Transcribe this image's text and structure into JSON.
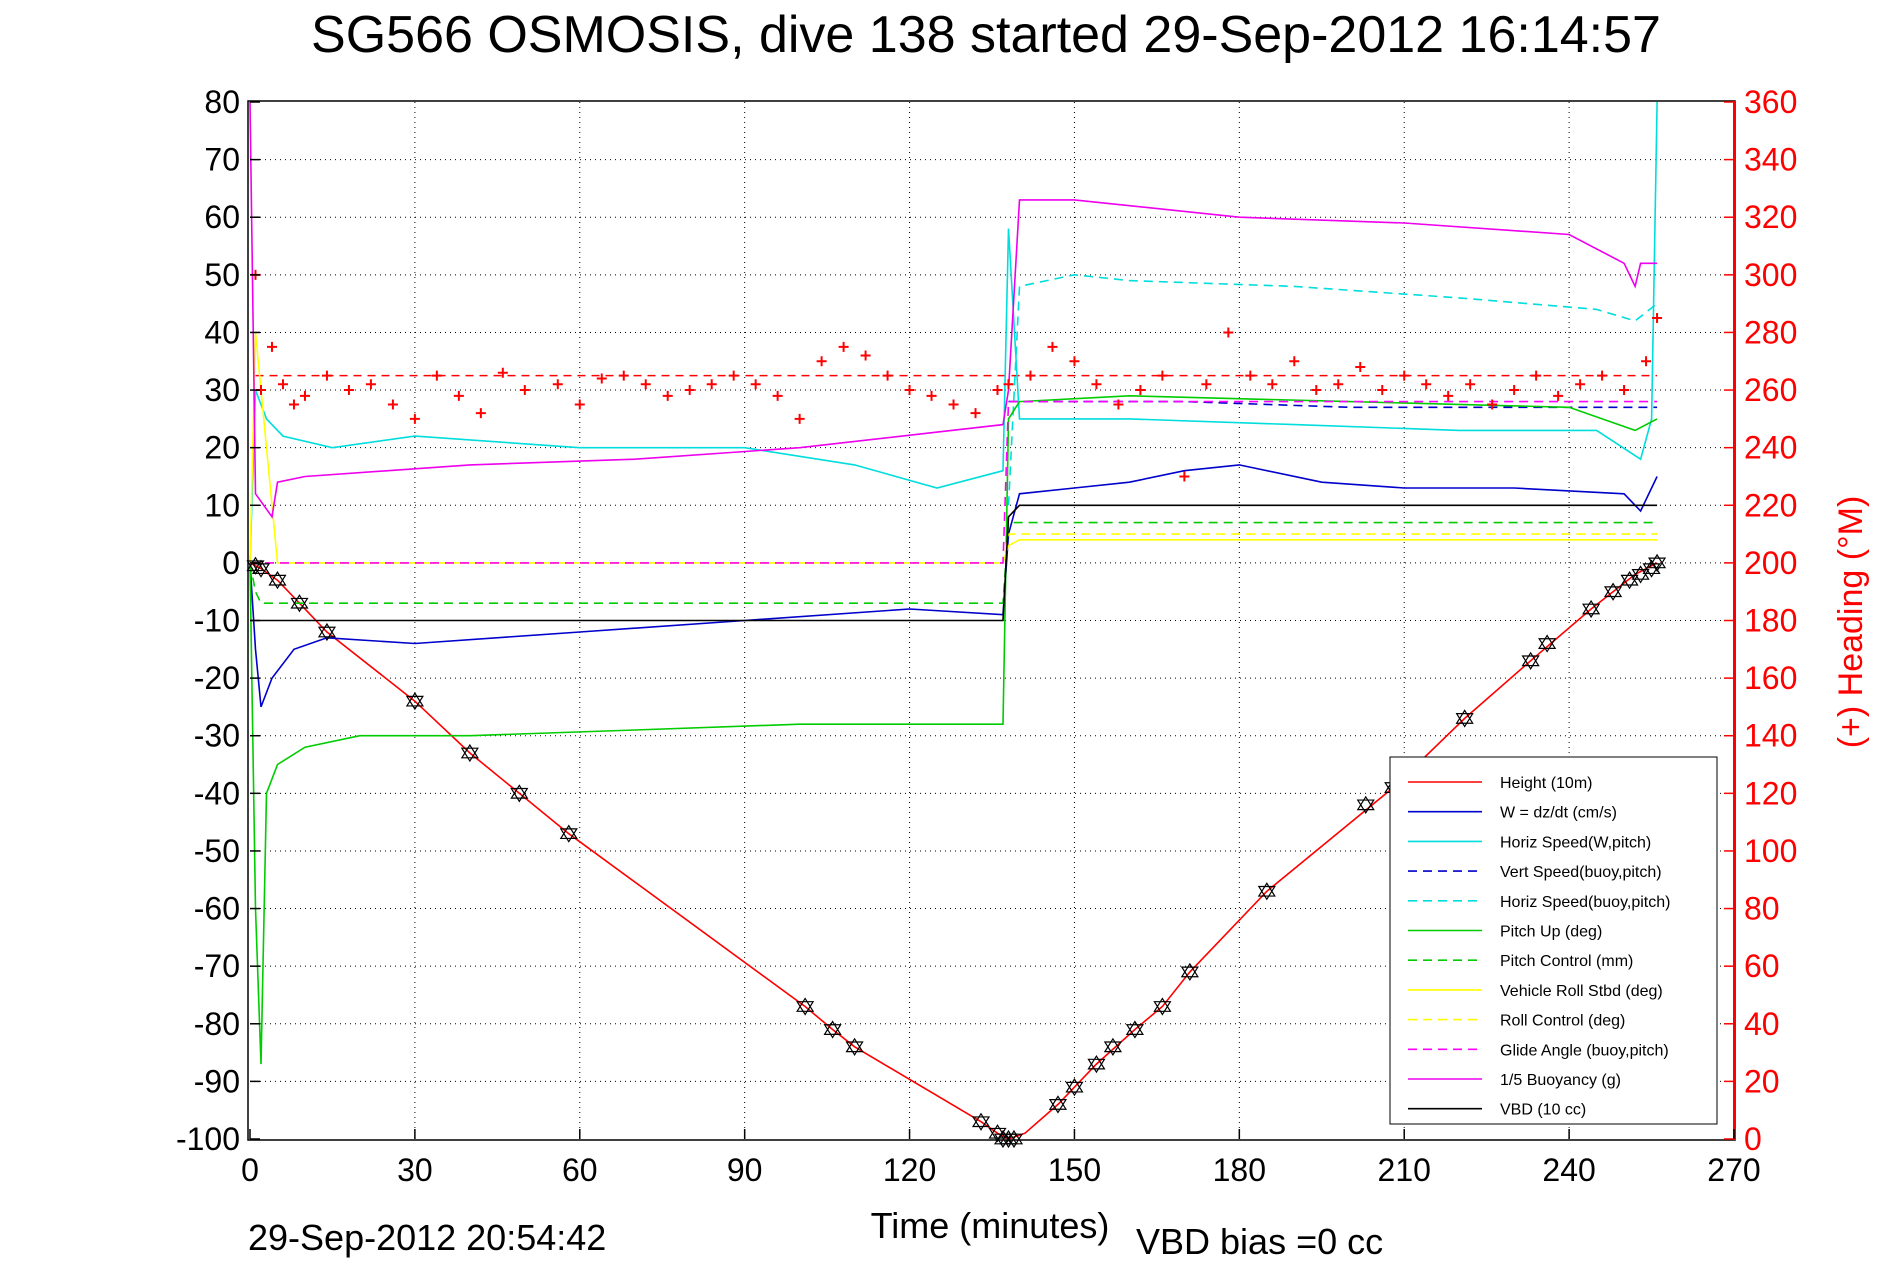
{
  "chart_data": {
    "type": "line",
    "title": "SG566 OSMOSIS, dive 138 started 29-Sep-2012 16:14:57",
    "xlabel": "Time (minutes)",
    "ylabel_right": "(+) Heading (°M)",
    "footer_left": "29-Sep-2012 20:54:42",
    "footer_right": "VBD bias =0 cc",
    "xlim": [
      0,
      270
    ],
    "ylim": [
      -100,
      80
    ],
    "ylim_right": [
      0,
      360
    ],
    "x_ticks": [
      0,
      30,
      60,
      90,
      120,
      150,
      180,
      210,
      240,
      270
    ],
    "y_ticks": [
      -100,
      -90,
      -80,
      -70,
      -60,
      -50,
      -40,
      -30,
      -20,
      -10,
      0,
      10,
      20,
      30,
      40,
      50,
      60,
      70,
      80
    ],
    "y_ticks_right": [
      0,
      20,
      40,
      60,
      80,
      100,
      120,
      140,
      160,
      180,
      200,
      220,
      240,
      260,
      280,
      300,
      320,
      340,
      360
    ],
    "grid": true,
    "legend_position": "bottom-right",
    "series": [
      {
        "name": "Height (10m)",
        "color": "#ff0000",
        "style": "solid",
        "x": [
          0,
          2,
          5,
          9,
          14,
          30,
          40,
          49,
          58,
          101,
          106,
          110,
          133,
          136,
          138,
          141,
          147,
          150,
          154,
          161,
          166,
          171,
          185,
          208,
          221,
          233,
          244,
          252,
          256
        ],
        "y": [
          0,
          -1,
          -3,
          -7,
          -12,
          -24,
          -33,
          -40,
          -47,
          -77,
          -81,
          -84,
          -97,
          -99,
          -100,
          -99,
          -94,
          -91,
          -87,
          -81,
          -77,
          -71,
          -57,
          -39,
          -27,
          -17,
          -8,
          -2,
          0
        ]
      },
      {
        "name": "W = dz/dt (cm/s)",
        "color": "#0000cc",
        "style": "solid",
        "x": [
          0,
          1,
          2,
          4,
          8,
          14,
          30,
          60,
          90,
          120,
          137,
          138,
          140,
          150,
          160,
          170,
          180,
          195,
          210,
          230,
          250,
          253,
          256
        ],
        "y": [
          0,
          -15,
          -25,
          -20,
          -15,
          -13,
          -14,
          -12,
          -10,
          -8,
          -9,
          5,
          12,
          13,
          14,
          16,
          17,
          14,
          13,
          13,
          12,
          9,
          15
        ]
      },
      {
        "name": "Horiz Speed(W,pitch)",
        "color": "#00dddd",
        "style": "solid",
        "x": [
          0,
          1,
          3,
          6,
          15,
          30,
          60,
          90,
          110,
          125,
          137,
          138,
          140,
          160,
          190,
          220,
          245,
          253,
          255,
          256
        ],
        "y": [
          0,
          30,
          25,
          22,
          20,
          22,
          20,
          20,
          17,
          13,
          16,
          58,
          25,
          25,
          24,
          23,
          23,
          18,
          25,
          80
        ]
      },
      {
        "name": "Vert Speed(buoy,pitch)",
        "color": "#0000cc",
        "style": "dashed",
        "x": [
          138,
          150,
          170,
          200,
          230,
          256
        ],
        "y": [
          28,
          28,
          28,
          27,
          27,
          27
        ]
      },
      {
        "name": "Horiz Speed(buoy,pitch)",
        "color": "#00dddd",
        "style": "dashed",
        "x": [
          138,
          140,
          150,
          160,
          190,
          220,
          245,
          252,
          256
        ],
        "y": [
          10,
          48,
          50,
          49,
          48,
          46,
          44,
          42,
          45
        ]
      },
      {
        "name": "Pitch Up (deg)",
        "color": "#00cc00",
        "style": "solid",
        "x": [
          0,
          1,
          2,
          3,
          5,
          10,
          20,
          40,
          70,
          100,
          130,
          137,
          138,
          140,
          160,
          200,
          240,
          252,
          256
        ],
        "y": [
          0,
          -60,
          -87,
          -40,
          -35,
          -32,
          -30,
          -30,
          -29,
          -28,
          -28,
          -28,
          25,
          28,
          29,
          28,
          27,
          23,
          25
        ]
      },
      {
        "name": "Pitch Control (mm)",
        "color": "#00cc00",
        "style": "dashed",
        "x": [
          0,
          1,
          2,
          137,
          138,
          256
        ],
        "y": [
          0,
          -5,
          -7,
          -7,
          7,
          7
        ]
      },
      {
        "name": "Vehicle Roll Stbd (deg)",
        "color": "#ffff00",
        "style": "solid",
        "x": [
          0,
          1,
          3,
          5,
          137,
          138,
          140,
          200,
          256
        ],
        "y": [
          0,
          40,
          20,
          0,
          0,
          3,
          4,
          4,
          4
        ]
      },
      {
        "name": "Roll Control (deg)",
        "color": "#ffff00",
        "style": "dashed",
        "x": [
          0,
          137,
          138,
          256
        ],
        "y": [
          0,
          0,
          5,
          5
        ]
      },
      {
        "name": "Glide Angle (buoy,pitch)",
        "color": "#ff00ff",
        "style": "dashed",
        "x": [
          0,
          137,
          138,
          256
        ],
        "y": [
          0,
          0,
          28,
          28
        ]
      },
      {
        "name": "1/5 Buoyancy (g)",
        "color": "#ee00ee",
        "style": "solid",
        "x": [
          0,
          1,
          4,
          5,
          10,
          40,
          70,
          100,
          137,
          138,
          140,
          150,
          180,
          210,
          240,
          250,
          252,
          253,
          256
        ],
        "y": [
          80,
          12,
          8,
          14,
          15,
          17,
          18,
          20,
          24,
          30,
          63,
          63,
          60,
          59,
          57,
          52,
          48,
          52,
          52
        ]
      },
      {
        "name": "VBD (10 cc)",
        "color": "#000000",
        "style": "solid",
        "x": [
          0,
          2,
          137,
          138,
          140,
          256
        ],
        "y": [
          -10,
          -10,
          -10,
          8,
          10,
          10
        ]
      }
    ],
    "heading_target": {
      "color": "#ff0000",
      "value": 265
    },
    "heading_points": {
      "name": "(+) Heading (°M)",
      "color": "#ff0000",
      "marker": "+",
      "x": [
        1,
        2,
        4,
        6,
        8,
        10,
        14,
        18,
        22,
        26,
        30,
        34,
        38,
        42,
        46,
        50,
        56,
        60,
        64,
        68,
        72,
        76,
        80,
        84,
        88,
        92,
        96,
        100,
        104,
        108,
        112,
        116,
        120,
        124,
        128,
        132,
        136,
        138,
        142,
        146,
        150,
        154,
        158,
        162,
        166,
        170,
        174,
        178,
        182,
        186,
        190,
        194,
        198,
        202,
        206,
        210,
        214,
        218,
        222,
        226,
        230,
        234,
        238,
        242,
        246,
        250,
        254,
        256
      ],
      "y": [
        300,
        260,
        275,
        262,
        255,
        258,
        265,
        260,
        262,
        255,
        250,
        265,
        258,
        252,
        266,
        260,
        262,
        255,
        264,
        265,
        262,
        258,
        260,
        262,
        265,
        262,
        258,
        250,
        270,
        275,
        272,
        265,
        260,
        258,
        255,
        252,
        260,
        262,
        265,
        275,
        270,
        262,
        255,
        260,
        265,
        230,
        262,
        280,
        265,
        262,
        270,
        260,
        262,
        268,
        260,
        265,
        262,
        258,
        262,
        255,
        260,
        265,
        258,
        262,
        265,
        260,
        270,
        285
      ]
    },
    "depth_markers": {
      "color": "#000000",
      "x": [
        1,
        2,
        5,
        9,
        14,
        30,
        40,
        49,
        58,
        101,
        106,
        110,
        133,
        136,
        137,
        138,
        139,
        147,
        150,
        154,
        157,
        161,
        166,
        171,
        185,
        203,
        208,
        221,
        233,
        236,
        244,
        248,
        251,
        253,
        255,
        256
      ],
      "y": [
        -0.5,
        -1,
        -3,
        -7,
        -12,
        -24,
        -33,
        -40,
        -47,
        -77,
        -81,
        -84,
        -97,
        -99,
        -100,
        -100,
        -100,
        -94,
        -91,
        -87,
        -84,
        -81,
        -77,
        -71,
        -57,
        -42,
        -39,
        -27,
        -17,
        -14,
        -8,
        -5,
        -3,
        -2,
        -1,
        0
      ]
    }
  }
}
